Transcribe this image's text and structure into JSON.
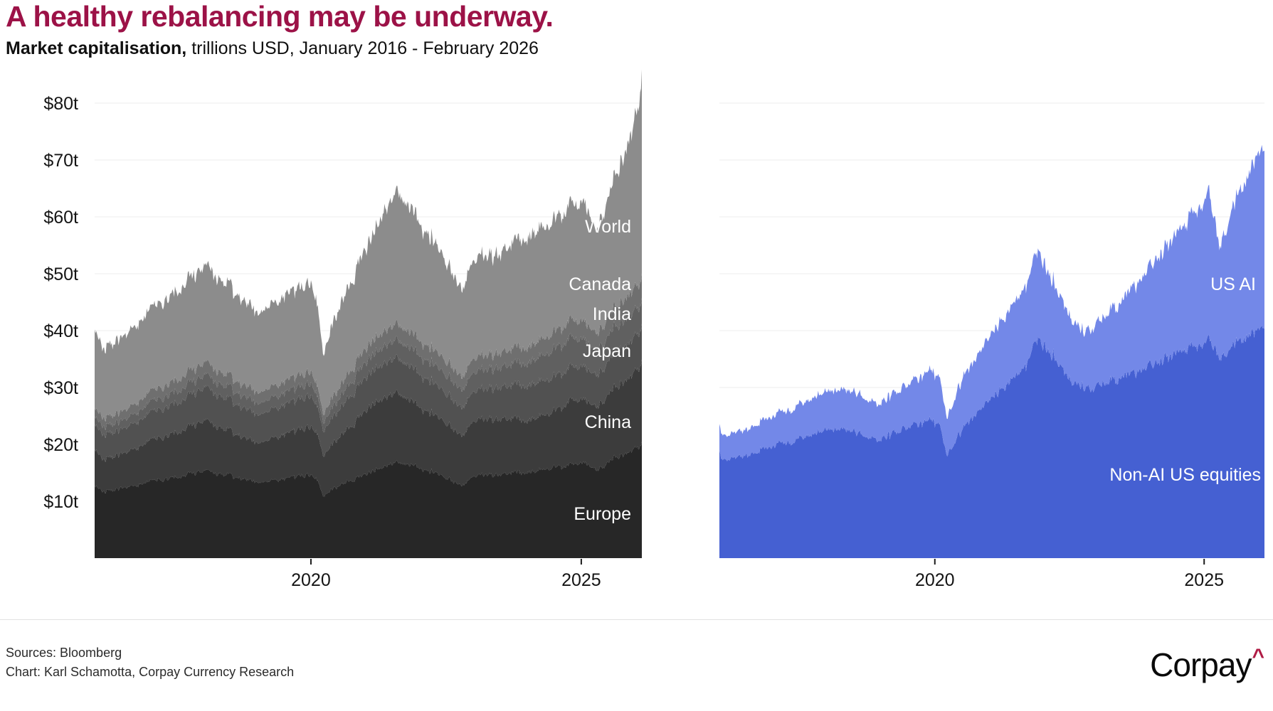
{
  "header": {
    "title": "A healthy rebalancing may be underway.",
    "subtitle_bold": "Market capitalisation,",
    "subtitle_rest": " trillions USD, January 2016 - February 2026"
  },
  "colors": {
    "title_accent": "#9c1247",
    "gridline": "#ececec",
    "axis_text": "#141414",
    "logo_caret": "#b01c45"
  },
  "y_axis": {
    "unit": "trillions USD",
    "ticks": [
      {
        "v": 10,
        "label": "$10t"
      },
      {
        "v": 20,
        "label": "$20t"
      },
      {
        "v": 30,
        "label": "$30t"
      },
      {
        "v": 40,
        "label": "$40t"
      },
      {
        "v": 50,
        "label": "$50t"
      },
      {
        "v": 60,
        "label": "$60t"
      },
      {
        "v": 70,
        "label": "$70t"
      },
      {
        "v": 80,
        "label": "$80t"
      }
    ]
  },
  "chart_data": [
    {
      "id": "global-ex-us-market-cap",
      "type": "area",
      "stacked": true,
      "x_range": [
        2016.0,
        2026.12
      ],
      "ylim": [
        0,
        85
      ],
      "grid": true,
      "x_ticks": [
        {
          "t": 2020,
          "label": "2020"
        },
        {
          "t": 2025,
          "label": "2025"
        }
      ],
      "series": [
        {
          "name": "Europe",
          "label": "Europe",
          "color": "#272727",
          "points": [
            [
              2016,
              12.8
            ],
            [
              2016.15,
              11.8
            ],
            [
              2016.5,
              12.3
            ],
            [
              2017,
              13.3
            ],
            [
              2017.5,
              14.2
            ],
            [
              2018.05,
              15.4
            ],
            [
              2018.5,
              14.5
            ],
            [
              2018.95,
              13.3
            ],
            [
              2019.5,
              14
            ],
            [
              2020,
              14.8
            ],
            [
              2020.13,
              13.5
            ],
            [
              2020.22,
              10.8
            ],
            [
              2020.45,
              12.5
            ],
            [
              2020.8,
              13.8
            ],
            [
              2021.1,
              15.3
            ],
            [
              2021.6,
              17
            ],
            [
              2022,
              16
            ],
            [
              2022.4,
              14.5
            ],
            [
              2022.75,
              12.8
            ],
            [
              2023.1,
              14.5
            ],
            [
              2023.5,
              14.8
            ],
            [
              2024,
              15.2
            ],
            [
              2024.5,
              15.8
            ],
            [
              2025.08,
              17
            ],
            [
              2025.28,
              15.2
            ],
            [
              2025.6,
              17.5
            ],
            [
              2025.9,
              18.8
            ],
            [
              2026.05,
              19.8
            ],
            [
              2026.12,
              20.2
            ]
          ]
        },
        {
          "name": "China",
          "label": "China",
          "color": "#3c3c3c",
          "points": [
            [
              2016,
              6.4
            ],
            [
              2016.15,
              5.7
            ],
            [
              2016.5,
              6
            ],
            [
              2017,
              7
            ],
            [
              2017.5,
              7.8
            ],
            [
              2018.05,
              8.8
            ],
            [
              2018.5,
              7.8
            ],
            [
              2018.95,
              6.9
            ],
            [
              2019.5,
              7.8
            ],
            [
              2020,
              8.5
            ],
            [
              2020.13,
              8
            ],
            [
              2020.22,
              7
            ],
            [
              2020.45,
              8.2
            ],
            [
              2020.8,
              9.8
            ],
            [
              2021.1,
              11.8
            ],
            [
              2021.6,
              12.3
            ],
            [
              2022,
              10.8
            ],
            [
              2022.4,
              9.8
            ],
            [
              2022.75,
              8.8
            ],
            [
              2023.1,
              9.8
            ],
            [
              2023.5,
              9.8
            ],
            [
              2024,
              9.2
            ],
            [
              2024.5,
              9.8
            ],
            [
              2024.8,
              11.2
            ],
            [
              2025.08,
              11.2
            ],
            [
              2025.28,
              11
            ],
            [
              2025.6,
              12.2
            ],
            [
              2025.9,
              13.2
            ],
            [
              2026.05,
              14
            ],
            [
              2026.12,
              14.4
            ]
          ]
        },
        {
          "name": "Japan",
          "label": "Japan",
          "color": "#515151",
          "points": [
            [
              2016,
              4.4
            ],
            [
              2016.5,
              4.3
            ],
            [
              2017,
              4.8
            ],
            [
              2017.5,
              5.2
            ],
            [
              2018.05,
              5.8
            ],
            [
              2018.95,
              5
            ],
            [
              2019.5,
              5.2
            ],
            [
              2020,
              5.5
            ],
            [
              2020.22,
              4.3
            ],
            [
              2020.8,
              5.5
            ],
            [
              2021.1,
              6
            ],
            [
              2021.6,
              6.2
            ],
            [
              2022,
              5.8
            ],
            [
              2022.75,
              4.9
            ],
            [
              2023.5,
              5.6
            ],
            [
              2024,
              6.2
            ],
            [
              2024.5,
              6
            ],
            [
              2025.08,
              5.8
            ],
            [
              2025.28,
              5.5
            ],
            [
              2025.6,
              6
            ],
            [
              2025.9,
              6.2
            ],
            [
              2026.12,
              6.3
            ]
          ]
        },
        {
          "name": "India",
          "label": "India",
          "color": "#606060",
          "points": [
            [
              2016,
              1.4
            ],
            [
              2016.5,
              1.5
            ],
            [
              2017,
              1.8
            ],
            [
              2017.5,
              2
            ],
            [
              2018.05,
              2.2
            ],
            [
              2018.95,
              2
            ],
            [
              2019.5,
              2.1
            ],
            [
              2020,
              2.2
            ],
            [
              2020.22,
              1.5
            ],
            [
              2020.8,
              2.4
            ],
            [
              2021.1,
              2.8
            ],
            [
              2021.6,
              3.2
            ],
            [
              2022,
              3.3
            ],
            [
              2022.75,
              3.2
            ],
            [
              2023.5,
              3.5
            ],
            [
              2024,
              4
            ],
            [
              2024.5,
              4.8
            ],
            [
              2024.75,
              5.1
            ],
            [
              2025.08,
              4.8
            ],
            [
              2025.28,
              4.3
            ],
            [
              2025.6,
              4.6
            ],
            [
              2025.9,
              4.7
            ],
            [
              2026.12,
              4.5
            ]
          ]
        },
        {
          "name": "Canada",
          "label": "Canada",
          "color": "#6f6f6f",
          "points": [
            [
              2016,
              1.5
            ],
            [
              2016.5,
              1.6
            ],
            [
              2017,
              1.8
            ],
            [
              2017.5,
              2
            ],
            [
              2018.05,
              2.2
            ],
            [
              2018.95,
              1.9
            ],
            [
              2019.5,
              2
            ],
            [
              2020,
              2.1
            ],
            [
              2020.22,
              1.5
            ],
            [
              2020.8,
              2.2
            ],
            [
              2021.1,
              2.5
            ],
            [
              2021.6,
              2.8
            ],
            [
              2022,
              2.7
            ],
            [
              2022.75,
              2.3
            ],
            [
              2023.5,
              2.6
            ],
            [
              2024,
              2.8
            ],
            [
              2024.5,
              3
            ],
            [
              2025.08,
              3.2
            ],
            [
              2025.28,
              3
            ],
            [
              2025.6,
              3.4
            ],
            [
              2025.9,
              3.8
            ],
            [
              2026.05,
              4.1
            ],
            [
              2026.12,
              4.3
            ]
          ]
        },
        {
          "name": "World (rest of world)",
          "label": "World",
          "color": "#8c8c8c",
          "points": [
            [
              2016,
              13.8
            ],
            [
              2016.15,
              12.3
            ],
            [
              2016.5,
              13
            ],
            [
              2017,
              14.2
            ],
            [
              2017.5,
              15.5
            ],
            [
              2018.05,
              17
            ],
            [
              2018.5,
              15.8
            ],
            [
              2018.95,
              14
            ],
            [
              2019.5,
              15
            ],
            [
              2020,
              15.8
            ],
            [
              2020.13,
              14
            ],
            [
              2020.22,
              10.3
            ],
            [
              2020.45,
              13.5
            ],
            [
              2020.8,
              15.8
            ],
            [
              2021.1,
              18.5
            ],
            [
              2021.6,
              23.5
            ],
            [
              2022,
              20.8
            ],
            [
              2022.4,
              18
            ],
            [
              2022.75,
              15.5
            ],
            [
              2023.1,
              17.5
            ],
            [
              2023.5,
              17.5
            ],
            [
              2024,
              19.5
            ],
            [
              2024.5,
              19.5
            ],
            [
              2025.08,
              21
            ],
            [
              2025.28,
              18
            ],
            [
              2025.6,
              22.5
            ],
            [
              2025.9,
              27.5
            ],
            [
              2026.05,
              31.5
            ],
            [
              2026.12,
              35.5
            ]
          ]
        }
      ]
    },
    {
      "id": "us-market-cap-ai-split",
      "type": "area",
      "stacked": true,
      "x_range": [
        2016.0,
        2026.12
      ],
      "ylim": [
        0,
        85
      ],
      "grid": true,
      "x_ticks": [
        {
          "t": 2020,
          "label": "2020"
        },
        {
          "t": 2025,
          "label": "2025"
        }
      ],
      "series": [
        {
          "name": "Non-AI US equities",
          "label": "Non-AI US equities",
          "color": "#4560d2",
          "points": [
            [
              2016,
              18.4
            ],
            [
              2016.15,
              17.3
            ],
            [
              2016.5,
              18.2
            ],
            [
              2017,
              19.8
            ],
            [
              2017.5,
              21
            ],
            [
              2018.05,
              22.8
            ],
            [
              2018.5,
              22.3
            ],
            [
              2018.95,
              20.8
            ],
            [
              2019.5,
              23
            ],
            [
              2019.95,
              24.5
            ],
            [
              2020.13,
              22.5
            ],
            [
              2020.22,
              18
            ],
            [
              2020.45,
              22
            ],
            [
              2020.8,
              25.5
            ],
            [
              2021.1,
              28.5
            ],
            [
              2021.6,
              32.5
            ],
            [
              2021.9,
              38.5
            ],
            [
              2022.2,
              35.5
            ],
            [
              2022.45,
              32
            ],
            [
              2022.75,
              30
            ],
            [
              2023.1,
              30.5
            ],
            [
              2023.5,
              31.5
            ],
            [
              2024,
              34
            ],
            [
              2024.6,
              36
            ],
            [
              2025.08,
              38.5
            ],
            [
              2025.28,
              35
            ],
            [
              2025.6,
              38
            ],
            [
              2025.9,
              39.5
            ],
            [
              2026.05,
              40.5
            ],
            [
              2026.12,
              41.3
            ]
          ]
        },
        {
          "name": "US AI",
          "label": "US AI",
          "color": "#7388e8",
          "points": [
            [
              2016,
              4.6
            ],
            [
              2016.15,
              4.3
            ],
            [
              2016.5,
              4.6
            ],
            [
              2017,
              5.3
            ],
            [
              2017.5,
              6
            ],
            [
              2018.05,
              6.8
            ],
            [
              2018.5,
              7
            ],
            [
              2018.95,
              6.3
            ],
            [
              2019.5,
              7.5
            ],
            [
              2019.95,
              8.8
            ],
            [
              2020.13,
              8
            ],
            [
              2020.22,
              6.5
            ],
            [
              2020.45,
              8.5
            ],
            [
              2020.8,
              10
            ],
            [
              2021.1,
              11.5
            ],
            [
              2021.6,
              13.5
            ],
            [
              2021.9,
              15.5
            ],
            [
              2022.2,
              13
            ],
            [
              2022.45,
              11.5
            ],
            [
              2022.75,
              9.8
            ],
            [
              2023.1,
              11.5
            ],
            [
              2023.5,
              13.5
            ],
            [
              2024,
              17.5
            ],
            [
              2024.6,
              21.5
            ],
            [
              2025.08,
              26
            ],
            [
              2025.28,
              19.5
            ],
            [
              2025.6,
              25.5
            ],
            [
              2025.9,
              29.5
            ],
            [
              2026.05,
              31.5
            ],
            [
              2026.12,
              32
            ]
          ]
        }
      ]
    }
  ],
  "footer": {
    "sources": "Sources: Bloomberg",
    "credit": "Chart: Karl Schamotta, Corpay Currency Research",
    "logo_text": "Corpay",
    "logo_mark": "^"
  }
}
